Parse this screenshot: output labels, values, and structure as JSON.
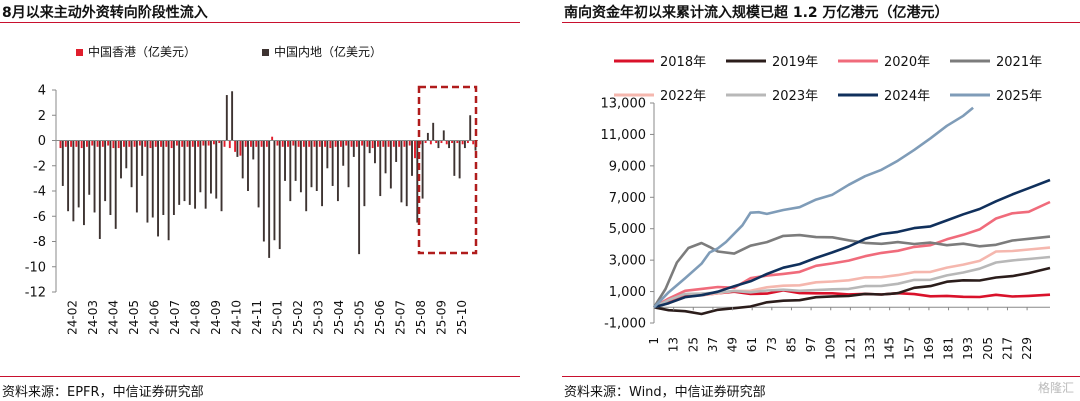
{
  "left": {
    "title": "8月以来主动外资转向阶段性流入",
    "source": "资料来源：EPFR，中信证券研究部",
    "chart_data": {
      "type": "bar",
      "title": "8月以来主动外资转向阶段性流入",
      "ylim": [
        -12,
        4
      ],
      "yticks": [
        4,
        2,
        0,
        -2,
        -4,
        -6,
        -8,
        -10,
        -12
      ],
      "xtick_labels": [
        "24-02",
        "24-03",
        "24-04",
        "24-05",
        "24-06",
        "24-07",
        "24-08",
        "24-09",
        "24-10",
        "24-11",
        "25-01",
        "25-02",
        "25-03",
        "25-04",
        "25-05",
        "25-06",
        "25-07",
        "25-08",
        "25-09",
        "25-10"
      ],
      "series": [
        {
          "name": "中国香港（亿美元）",
          "color": "#e01e2c",
          "values": [
            -0.6,
            -0.5,
            -0.5,
            -0.5,
            -0.6,
            -0.5,
            -0.4,
            -0.5,
            -0.5,
            -0.4,
            -0.6,
            -0.6,
            -0.5,
            -0.5,
            -0.5,
            -0.4,
            -0.5,
            -0.6,
            -0.5,
            -0.5,
            -0.5,
            -0.6,
            -0.4,
            -0.5,
            -0.5,
            -0.5,
            -0.5,
            -0.4,
            -0.4,
            -0.3,
            -0.2,
            -0.5,
            -0.6,
            -0.9,
            -1.2,
            -0.5,
            -0.5,
            -0.5,
            -0.5,
            -0.5,
            0.3,
            -0.4,
            -0.5,
            -0.5,
            -0.4,
            -0.5,
            -0.5,
            -0.5,
            -0.5,
            -0.5,
            -0.5,
            -0.6,
            -0.5,
            -0.5,
            -0.4,
            -0.5,
            -0.5,
            -0.4,
            -0.5,
            -0.6,
            -0.5,
            -0.5,
            -0.5,
            -0.5,
            -0.5,
            -0.5,
            -0.4,
            -1.4,
            -0.3,
            -0.2,
            -0.3,
            -0.2,
            -0.2,
            -0.3,
            -0.2,
            -0.2,
            -0.3,
            -0.2,
            -0.3
          ]
        },
        {
          "name": "中国内地（亿美元）",
          "color": "#3d3331",
          "values": [
            -3.6,
            -5.6,
            -6.4,
            -5.3,
            -6.7,
            -4.3,
            -5.7,
            -7.8,
            -4.8,
            -5.9,
            -7.0,
            -3.0,
            -2.2,
            -3.7,
            -5.7,
            -2.8,
            -6.5,
            -6.1,
            -7.6,
            -5.9,
            -7.9,
            -5.9,
            -5.1,
            -4.8,
            -5.1,
            -5.4,
            -4.1,
            -5.4,
            -4.2,
            -4.6,
            -5.6,
            3.6,
            3.9,
            -1.3,
            -3.0,
            -4.0,
            -1.5,
            -5.3,
            -8.0,
            -9.3,
            -7.9,
            -8.6,
            -3.2,
            -4.8,
            -3.2,
            -4.1,
            -5.6,
            -3.7,
            -4.0,
            -5.2,
            -2.2,
            -3.6,
            -4.8,
            -2.0,
            -3.7,
            -1.3,
            -9.0,
            -5.2,
            -1.0,
            -1.8,
            -4.4,
            -2.6,
            -3.8,
            -1.7,
            -4.9,
            -5.2,
            -2.8,
            -6.5,
            -4.6,
            0.6,
            1.4,
            -0.6,
            0.8,
            -0.6,
            -2.8,
            -3.0,
            -0.6,
            2.0,
            -0.8
          ]
        }
      ]
    }
  },
  "right": {
    "title": "南向资金年初以来累计流入规模已超 1.2 万亿港元（亿港元）",
    "source": "资料来源：Wind，中信证券研究部",
    "chart_data": {
      "type": "line",
      "title": "南向资金年初以来累计流入规模已超 1.2 万亿港元（亿港元）",
      "ylim": [
        -1000,
        13000
      ],
      "yticks": [
        13000,
        11000,
        9000,
        7000,
        5000,
        3000,
        1000,
        -1000
      ],
      "ytick_labels": [
        "13,000",
        "11,000",
        "9,000",
        "7,000",
        "5,000",
        "3,000",
        "1,000",
        "-1,000"
      ],
      "xlim": [
        1,
        243
      ],
      "xticks": [
        1,
        13,
        25,
        37,
        49,
        61,
        73,
        85,
        97,
        109,
        121,
        133,
        145,
        157,
        169,
        181,
        193,
        205,
        217,
        229
      ],
      "legend_position": "top",
      "series": [
        {
          "name": "2018年",
          "color": "#d9112a",
          "x": [
            1,
            10,
            20,
            30,
            40,
            50,
            60,
            70,
            80,
            90,
            100,
            110,
            120,
            130,
            140,
            150,
            160,
            170,
            180,
            190,
            200,
            210,
            220,
            230,
            243
          ],
          "values": [
            0,
            400,
            700,
            800,
            900,
            950,
            900,
            850,
            1050,
            950,
            850,
            900,
            850,
            800,
            850,
            900,
            800,
            750,
            700,
            650,
            700,
            750,
            700,
            750,
            800
          ]
        },
        {
          "name": "2019年",
          "color": "#2b1d1b",
          "x": [
            1,
            10,
            20,
            30,
            40,
            50,
            60,
            70,
            80,
            90,
            100,
            110,
            120,
            130,
            140,
            150,
            160,
            170,
            180,
            190,
            200,
            210,
            220,
            230,
            243
          ],
          "values": [
            0,
            -150,
            -300,
            -400,
            -150,
            -100,
            100,
            300,
            400,
            500,
            600,
            700,
            750,
            800,
            850,
            900,
            1200,
            1400,
            1600,
            1700,
            1750,
            1850,
            2000,
            2200,
            2500
          ]
        },
        {
          "name": "2020年",
          "color": "#f06b7b",
          "x": [
            1,
            10,
            20,
            30,
            40,
            50,
            60,
            70,
            80,
            90,
            100,
            110,
            120,
            130,
            140,
            150,
            160,
            170,
            180,
            190,
            200,
            210,
            220,
            230,
            243
          ],
          "values": [
            0,
            600,
            1000,
            1200,
            1300,
            1200,
            1900,
            2000,
            2100,
            2300,
            2600,
            2800,
            3000,
            3200,
            3500,
            3600,
            3800,
            4000,
            4300,
            4600,
            5000,
            5600,
            6000,
            6100,
            6700
          ]
        },
        {
          "name": "2021年",
          "color": "#7c7c7c",
          "x": [
            1,
            8,
            15,
            22,
            30,
            35,
            40,
            50,
            60,
            70,
            80,
            90,
            100,
            110,
            120,
            130,
            140,
            150,
            160,
            170,
            180,
            190,
            200,
            210,
            220,
            230,
            243
          ],
          "values": [
            0,
            1200,
            2800,
            3800,
            4100,
            3800,
            3600,
            3400,
            3900,
            4200,
            4500,
            4600,
            4500,
            4400,
            4300,
            4100,
            4000,
            4200,
            4000,
            4100,
            4000,
            4000,
            3900,
            4000,
            4200,
            4400,
            4500
          ]
        },
        {
          "name": "2022年",
          "color": "#f5b7ae",
          "x": [
            1,
            10,
            20,
            30,
            40,
            50,
            60,
            70,
            80,
            90,
            100,
            110,
            120,
            130,
            140,
            150,
            160,
            170,
            180,
            190,
            200,
            210,
            220,
            230,
            243
          ],
          "values": [
            0,
            300,
            600,
            800,
            900,
            1000,
            1100,
            1250,
            1350,
            1450,
            1550,
            1650,
            1750,
            1850,
            1950,
            2050,
            2200,
            2300,
            2500,
            2700,
            3000,
            3500,
            3600,
            3700,
            3800
          ]
        },
        {
          "name": "2023年",
          "color": "#b8b8b8",
          "x": [
            1,
            10,
            20,
            30,
            40,
            50,
            60,
            70,
            80,
            90,
            100,
            110,
            120,
            130,
            140,
            150,
            160,
            170,
            180,
            190,
            200,
            210,
            220,
            230,
            243
          ],
          "values": [
            0,
            500,
            800,
            900,
            950,
            1000,
            1000,
            1050,
            1100,
            1100,
            1050,
            1150,
            1200,
            1300,
            1400,
            1500,
            1700,
            1800,
            2000,
            2200,
            2500,
            2800,
            3000,
            3100,
            3200
          ]
        },
        {
          "name": "2024年",
          "color": "#10305c",
          "x": [
            1,
            10,
            20,
            30,
            40,
            50,
            60,
            70,
            80,
            90,
            100,
            110,
            120,
            130,
            140,
            150,
            160,
            170,
            180,
            190,
            200,
            210,
            220,
            230,
            243
          ],
          "values": [
            0,
            300,
            600,
            800,
            1000,
            1300,
            1700,
            2100,
            2500,
            2800,
            3100,
            3500,
            3900,
            4300,
            4700,
            4800,
            5000,
            5200,
            5500,
            5900,
            6300,
            6700,
            7200,
            7600,
            8100
          ]
        },
        {
          "name": "2025年",
          "color": "#7f9cb8",
          "x": [
            1,
            10,
            20,
            30,
            35,
            40,
            45,
            55,
            60,
            65,
            70,
            80,
            90,
            100,
            110,
            120,
            130,
            140,
            150,
            160,
            170,
            180,
            190,
            196
          ],
          "values": [
            0,
            1000,
            1800,
            2800,
            3500,
            3700,
            4200,
            5200,
            6000,
            6100,
            5900,
            6200,
            6400,
            6800,
            7200,
            7800,
            8300,
            8800,
            9300,
            10000,
            10800,
            11500,
            12200,
            12700
          ]
        }
      ]
    }
  },
  "watermark": "格隆汇"
}
